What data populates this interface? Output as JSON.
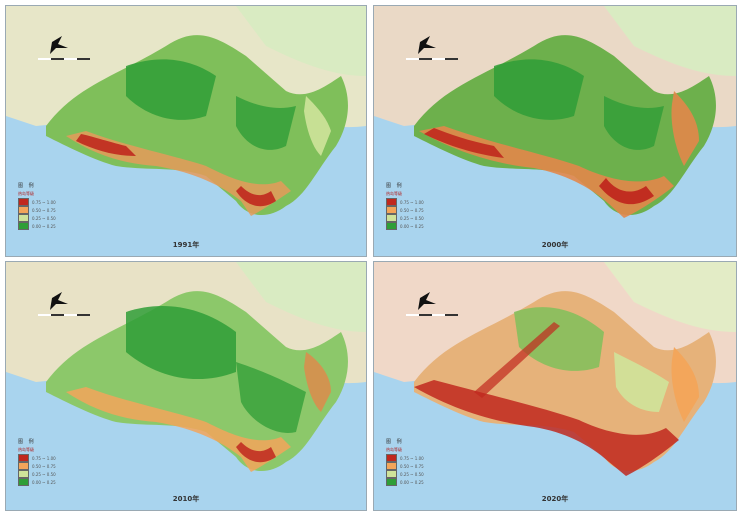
{
  "panels": [
    {
      "id": "p1",
      "year": "1991年",
      "land_tint": "#7fbf5a"
    },
    {
      "id": "p2",
      "year": "2000年",
      "land_tint": "#6db04c"
    },
    {
      "id": "p3",
      "year": "2010年",
      "land_tint": "#8cc86a"
    },
    {
      "id": "p4",
      "year": "2020年",
      "land_tint": "#e6b27a"
    }
  ],
  "legend": {
    "title": "图 例",
    "subtitle": "热岛等级",
    "classes": [
      {
        "label": "0.75 ~ 1.00",
        "color": "#c0281e"
      },
      {
        "label": "0.50 ~ 0.75",
        "color": "#f3a55a"
      },
      {
        "label": "0.25 ~ 0.50",
        "color": "#cfe39a"
      },
      {
        "label": "0.00 ~ 0.25",
        "color": "#2f9e37"
      }
    ]
  },
  "colors": {
    "sea": "#a9d4ee",
    "background_land": "#e9e7c9",
    "border": "#9aa9b3"
  }
}
